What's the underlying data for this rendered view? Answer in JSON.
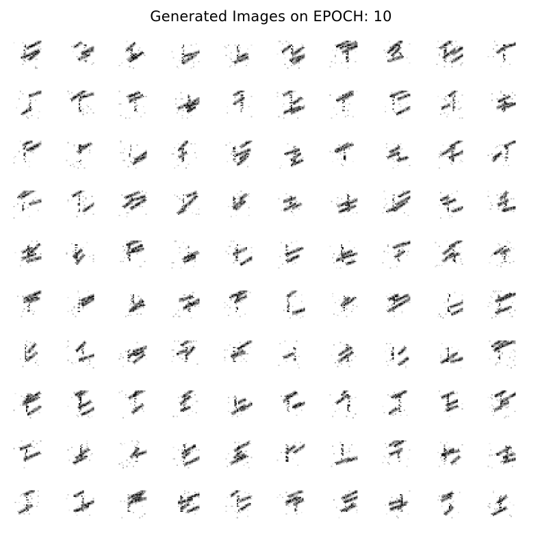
{
  "title": "Generated Images on EPOCH: 10",
  "grid": {
    "rows": 10,
    "cols": 10,
    "sample_label": "generated-sample"
  },
  "colors": {
    "background": "#ffffff",
    "ink": "#000000"
  }
}
